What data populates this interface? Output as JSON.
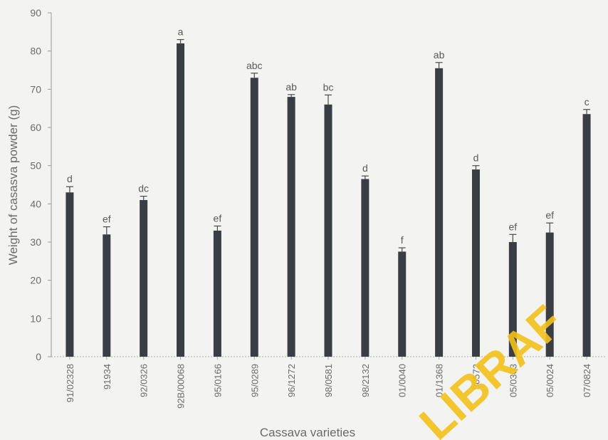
{
  "chart_data": {
    "type": "bar",
    "xlabel": "Cassava varieties",
    "ylabel": "Weight of casasva powder (g)",
    "ylim": [
      0,
      90
    ],
    "yticks": [
      0,
      10,
      20,
      30,
      40,
      50,
      60,
      70,
      80,
      90
    ],
    "grid": false,
    "categories": [
      "91/02328",
      "91934",
      "92/0326",
      "92B/00068",
      "95/0166",
      "95/0289",
      "96/1272",
      "98/0581",
      "98/2132",
      "01/0040",
      "01/1368",
      "30572",
      "05/0303",
      "05/0024",
      "07/0824"
    ],
    "values": [
      43,
      32,
      41,
      82,
      33,
      73,
      68,
      66,
      46.5,
      27.5,
      75.5,
      49,
      30,
      32.5,
      63.5
    ],
    "error": [
      1.5,
      2.0,
      1.0,
      1.0,
      1.2,
      1.2,
      0.6,
      2.5,
      0.8,
      1.0,
      1.5,
      1.0,
      2.0,
      2.5,
      1.2
    ],
    "significance_labels": [
      "d",
      "ef",
      "dc",
      "a",
      "ef",
      "abc",
      "ab",
      "bc",
      "d",
      "f",
      "ab",
      "d",
      "ef",
      "ef",
      "c"
    ],
    "bar_color": "#3b3d45"
  },
  "watermark": {
    "text": "LIBRAF",
    "color": "#f4c21c"
  }
}
